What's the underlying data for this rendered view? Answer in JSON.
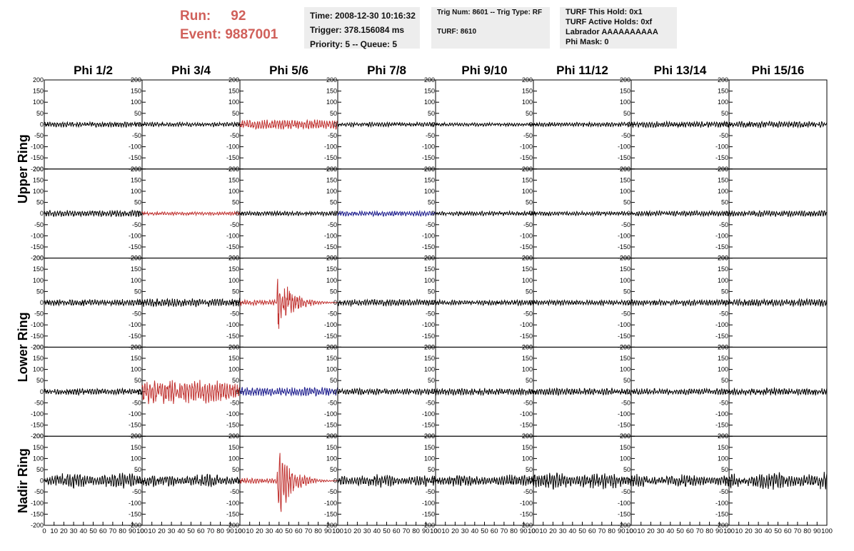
{
  "header": {
    "run_label": "Run:",
    "run_value": "92",
    "event_label": "Event:",
    "event_value": "9887001",
    "time": "Time: 2008-12-30 10:16:32",
    "trigger": "Trigger: 378.156084 ms",
    "priority": "Priority: 5 -- Queue: 5",
    "trig_num": "Trig Num: 8601 -- Trig Type: RF",
    "turf": "TURF: 8610",
    "turf_hold": "TURF This Hold: 0x1",
    "turf_active": "TURF Active Holds: 0xf",
    "labrador": "Labrador AAAAAAAAAA",
    "phi_mask": "Phi Mask: 0"
  },
  "chart_data": {
    "type": "line",
    "title": "",
    "columns": [
      "Phi 1/2",
      "Phi 3/4",
      "Phi 5/6",
      "Phi 7/8",
      "Phi 9/10",
      "Phi 11/12",
      "Phi 13/14",
      "Phi 15/16"
    ],
    "ring_labels": [
      {
        "label": "Upper Ring",
        "rows": [
          0,
          1
        ]
      },
      {
        "label": "Lower Ring",
        "rows": [
          2,
          3
        ]
      },
      {
        "label": "Nadir Ring",
        "rows": [
          4
        ]
      }
    ],
    "ylim": [
      -200,
      200
    ],
    "y_ticks": [
      -200,
      -150,
      -100,
      -50,
      0,
      50,
      100,
      150,
      200
    ],
    "xlim": [
      0,
      100
    ],
    "x_ticks": [
      0,
      10,
      20,
      30,
      40,
      50,
      60,
      70,
      80,
      90,
      100
    ],
    "colors": {
      "normal": "#000000",
      "triggered": "#c0302e",
      "secondary": "#1a1a8c"
    },
    "waveforms": [
      [
        {
          "amp": 12,
          "color": "normal"
        },
        {
          "amp": 10,
          "color": "normal"
        },
        {
          "amp": 22,
          "color": "triggered"
        },
        {
          "amp": 10,
          "color": "normal"
        },
        {
          "amp": 8,
          "color": "normal"
        },
        {
          "amp": 10,
          "color": "normal"
        },
        {
          "amp": 14,
          "color": "normal"
        },
        {
          "amp": 15,
          "color": "normal"
        }
      ],
      [
        {
          "amp": 15,
          "color": "normal"
        },
        {
          "amp": 8,
          "color": "triggered"
        },
        {
          "amp": 10,
          "color": "normal"
        },
        {
          "amp": 12,
          "color": "secondary"
        },
        {
          "amp": 10,
          "color": "normal"
        },
        {
          "amp": 10,
          "color": "normal"
        },
        {
          "amp": 12,
          "color": "normal"
        },
        {
          "amp": 14,
          "color": "normal"
        }
      ],
      [
        {
          "amp": 15,
          "color": "normal"
        },
        {
          "amp": 18,
          "color": "normal"
        },
        {
          "amp": 150,
          "color": "triggered"
        },
        {
          "amp": 15,
          "color": "normal"
        },
        {
          "amp": 12,
          "color": "normal"
        },
        {
          "amp": 12,
          "color": "normal"
        },
        {
          "amp": 14,
          "color": "normal"
        },
        {
          "amp": 16,
          "color": "normal"
        }
      ],
      [
        {
          "amp": 14,
          "color": "normal"
        },
        {
          "amp": 55,
          "color": "triggered"
        },
        {
          "amp": 20,
          "color": "secondary"
        },
        {
          "amp": 14,
          "color": "normal"
        },
        {
          "amp": 16,
          "color": "normal"
        },
        {
          "amp": 16,
          "color": "normal"
        },
        {
          "amp": 15,
          "color": "normal"
        },
        {
          "amp": 16,
          "color": "normal"
        }
      ],
      [
        {
          "amp": 35,
          "color": "normal"
        },
        {
          "amp": 30,
          "color": "normal"
        },
        {
          "amp": 160,
          "color": "triggered"
        },
        {
          "amp": 30,
          "color": "normal"
        },
        {
          "amp": 28,
          "color": "normal"
        },
        {
          "amp": 40,
          "color": "normal"
        },
        {
          "amp": 30,
          "color": "normal"
        },
        {
          "amp": 40,
          "color": "normal"
        }
      ]
    ]
  }
}
